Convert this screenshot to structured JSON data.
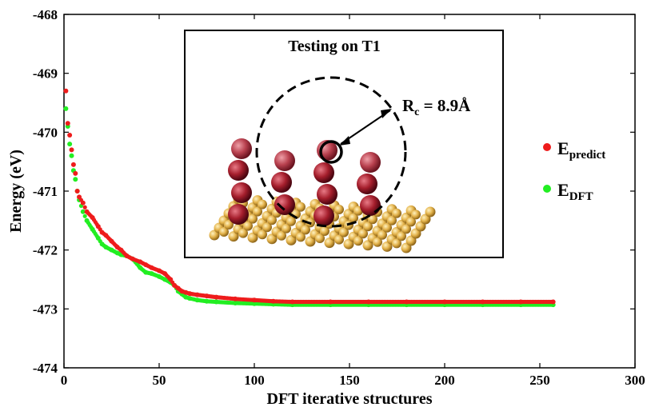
{
  "chart_data": {
    "type": "scatter",
    "xlabel": "DFT iterative structures",
    "ylabel": "Energy (eV)",
    "xlim": [
      0,
      300
    ],
    "ylim": [
      -474,
      -468
    ],
    "xticks": [
      "0",
      "50",
      "100",
      "150",
      "200",
      "250",
      "300"
    ],
    "yticks": [
      "-468",
      "-469",
      "-470",
      "-471",
      "-472",
      "-473",
      "-474"
    ],
    "grid": false,
    "legend_placement": "right",
    "series": [
      {
        "name": "E",
        "subscript": "predict",
        "color": "#ee1c1c",
        "x": [
          1,
          2,
          3,
          4,
          5,
          6,
          7,
          8,
          10,
          12,
          15,
          18,
          20,
          22,
          25,
          28,
          30,
          33,
          36,
          40,
          43,
          46,
          50,
          53,
          56,
          58,
          60,
          62,
          64,
          66,
          70,
          75,
          80,
          90,
          100,
          110,
          120,
          140,
          160,
          180,
          200,
          220,
          240,
          257
        ],
        "y": [
          -469.3,
          -469.85,
          -470.05,
          -470.3,
          -470.55,
          -470.7,
          -471.0,
          -471.1,
          -471.2,
          -471.35,
          -471.45,
          -471.6,
          -471.7,
          -471.75,
          -471.85,
          -471.95,
          -472.0,
          -472.1,
          -472.15,
          -472.2,
          -472.25,
          -472.3,
          -472.35,
          -472.4,
          -472.5,
          -472.6,
          -472.65,
          -472.7,
          -472.72,
          -472.74,
          -472.76,
          -472.78,
          -472.8,
          -472.83,
          -472.85,
          -472.87,
          -472.88,
          -472.88,
          -472.88,
          -472.88,
          -472.88,
          -472.88,
          -472.88,
          -472.88
        ]
      },
      {
        "name": "E",
        "subscript": "DFT",
        "color": "#22ee22",
        "x": [
          1,
          2,
          3,
          4,
          5,
          6,
          7,
          8,
          10,
          12,
          15,
          18,
          20,
          22,
          25,
          28,
          30,
          33,
          36,
          40,
          43,
          46,
          50,
          53,
          56,
          58,
          60,
          62,
          64,
          66,
          70,
          75,
          80,
          90,
          100,
          110,
          120,
          140,
          160,
          180,
          200,
          220,
          240,
          257
        ],
        "y": [
          -469.6,
          -469.9,
          -470.2,
          -470.4,
          -470.65,
          -470.8,
          -471.0,
          -471.15,
          -471.35,
          -471.5,
          -471.65,
          -471.8,
          -471.9,
          -471.95,
          -472.0,
          -472.05,
          -472.08,
          -472.1,
          -472.15,
          -472.3,
          -472.38,
          -472.4,
          -472.45,
          -472.5,
          -472.55,
          -472.6,
          -472.7,
          -472.75,
          -472.8,
          -472.82,
          -472.85,
          -472.87,
          -472.88,
          -472.9,
          -472.91,
          -472.92,
          -472.93,
          -472.93,
          -472.93,
          -472.93,
          -472.93,
          -472.93,
          -472.93,
          -472.93
        ]
      }
    ],
    "inset": {
      "title": "Testing on T1",
      "annotation_main": "R",
      "annotation_sub": "c",
      "annotation_rest": " = 8.9Å"
    }
  }
}
